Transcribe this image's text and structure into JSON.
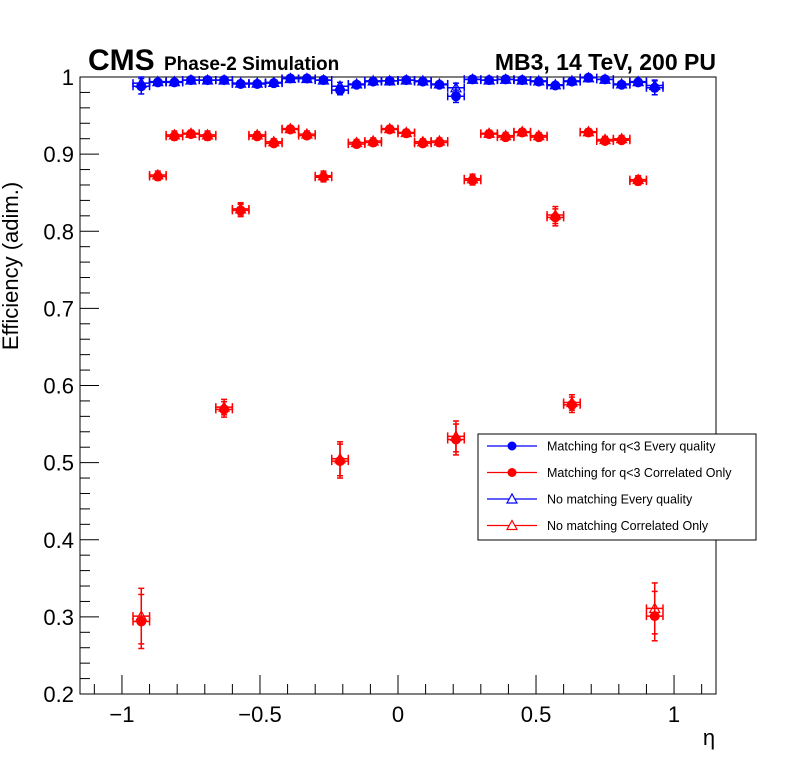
{
  "header": {
    "experiment": "CMS",
    "subtitle": "Phase-2 Simulation",
    "info": "MB3, 14 TeV, 200 PU"
  },
  "chart_data": {
    "type": "scatter",
    "title": "",
    "xlabel": "η",
    "ylabel": "Efficiency (adim.)",
    "xlim": [
      -1.152,
      1.152
    ],
    "ylim": [
      0.2,
      1.0
    ],
    "grid": false,
    "x_major_ticks": [
      -1,
      -0.5,
      0,
      0.5,
      1
    ],
    "x_tick_labels": [
      "−1",
      "−0.5",
      "0",
      "0.5",
      "1"
    ],
    "x_minor_step": 0.1,
    "y_major_ticks": [
      0.2,
      0.3,
      0.4,
      0.5,
      0.6,
      0.7,
      0.8,
      0.9,
      1.0
    ],
    "y_tick_labels": [
      "0.2",
      "0.3",
      "0.4",
      "0.5",
      "0.6",
      "0.7",
      "0.8",
      "0.9",
      "1"
    ],
    "y_minor_step": 0.02,
    "bin_half_width": 0.03,
    "x": [
      -0.93,
      -0.87,
      -0.81,
      -0.75,
      -0.69,
      -0.63,
      -0.57,
      -0.51,
      -0.45,
      -0.39,
      -0.33,
      -0.27,
      -0.21,
      -0.15,
      -0.09,
      -0.03,
      0.03,
      0.09,
      0.15,
      0.21,
      0.27,
      0.33,
      0.39,
      0.45,
      0.51,
      0.57,
      0.63,
      0.69,
      0.75,
      0.81,
      0.87,
      0.93
    ],
    "legend_position": "center-right",
    "series": [
      {
        "name": "Matching for q<3 Every quality",
        "color": "#0000ff",
        "marker": "circle-filled",
        "values": [
          0.988,
          0.993,
          0.993,
          0.996,
          0.996,
          0.996,
          0.991,
          0.991,
          0.992,
          0.998,
          0.998,
          0.996,
          0.983,
          0.99,
          0.994,
          0.995,
          0.996,
          0.994,
          0.99,
          0.975,
          0.997,
          0.996,
          0.997,
          0.996,
          0.994,
          0.989,
          0.994,
          0.999,
          0.997,
          0.99,
          0.993,
          0.986
        ],
        "yerr": [
          0.01,
          0.003,
          0.003,
          0.002,
          0.002,
          0.002,
          0.003,
          0.003,
          0.003,
          0.002,
          0.002,
          0.002,
          0.006,
          0.003,
          0.003,
          0.002,
          0.002,
          0.002,
          0.003,
          0.008,
          0.002,
          0.002,
          0.002,
          0.002,
          0.002,
          0.003,
          0.003,
          0.002,
          0.002,
          0.003,
          0.003,
          0.009
        ]
      },
      {
        "name": "Matching for q<3 Correlated Only",
        "color": "#ff0000",
        "marker": "circle-filled",
        "values": [
          0.294,
          0.871,
          0.923,
          0.926,
          0.923,
          0.569,
          0.827,
          0.923,
          0.914,
          0.932,
          0.924,
          0.87,
          0.502,
          0.913,
          0.915,
          0.932,
          0.927,
          0.914,
          0.915,
          0.53,
          0.866,
          0.926,
          0.922,
          0.928,
          0.922,
          0.818,
          0.575,
          0.928,
          0.917,
          0.918,
          0.865,
          0.301
        ],
        "yerr": [
          0.035,
          0.005,
          0.005,
          0.004,
          0.005,
          0.01,
          0.008,
          0.004,
          0.004,
          0.004,
          0.004,
          0.006,
          0.022,
          0.004,
          0.004,
          0.004,
          0.004,
          0.004,
          0.004,
          0.02,
          0.006,
          0.004,
          0.004,
          0.004,
          0.004,
          0.011,
          0.01,
          0.004,
          0.004,
          0.004,
          0.005,
          0.032
        ]
      },
      {
        "name": "No matching Every quality",
        "color": "#0000ff",
        "marker": "triangle-open",
        "values": [
          0.992,
          0.994,
          0.994,
          0.996,
          0.996,
          0.996,
          0.992,
          0.992,
          0.993,
          0.998,
          0.998,
          0.996,
          0.988,
          0.991,
          0.995,
          0.995,
          0.996,
          0.995,
          0.991,
          0.986,
          0.997,
          0.996,
          0.997,
          0.996,
          0.995,
          0.99,
          0.995,
          0.999,
          0.997,
          0.991,
          0.994,
          0.989
        ],
        "yerr": [
          0.008,
          0.003,
          0.003,
          0.002,
          0.002,
          0.002,
          0.003,
          0.003,
          0.003,
          0.002,
          0.002,
          0.002,
          0.005,
          0.003,
          0.003,
          0.002,
          0.002,
          0.002,
          0.003,
          0.006,
          0.002,
          0.002,
          0.002,
          0.002,
          0.002,
          0.003,
          0.003,
          0.002,
          0.002,
          0.003,
          0.003,
          0.007
        ]
      },
      {
        "name": "No matching Correlated Only",
        "color": "#ff0000",
        "marker": "triangle-open",
        "values": [
          0.301,
          0.873,
          0.925,
          0.927,
          0.925,
          0.572,
          0.829,
          0.925,
          0.916,
          0.933,
          0.926,
          0.872,
          0.505,
          0.915,
          0.917,
          0.933,
          0.928,
          0.916,
          0.917,
          0.534,
          0.868,
          0.927,
          0.924,
          0.929,
          0.924,
          0.821,
          0.578,
          0.929,
          0.919,
          0.92,
          0.867,
          0.311
        ],
        "yerr": [
          0.036,
          0.005,
          0.005,
          0.004,
          0.005,
          0.01,
          0.008,
          0.004,
          0.004,
          0.004,
          0.004,
          0.006,
          0.022,
          0.004,
          0.004,
          0.004,
          0.004,
          0.004,
          0.004,
          0.02,
          0.006,
          0.004,
          0.004,
          0.004,
          0.004,
          0.011,
          0.01,
          0.004,
          0.004,
          0.004,
          0.005,
          0.033
        ]
      }
    ]
  }
}
